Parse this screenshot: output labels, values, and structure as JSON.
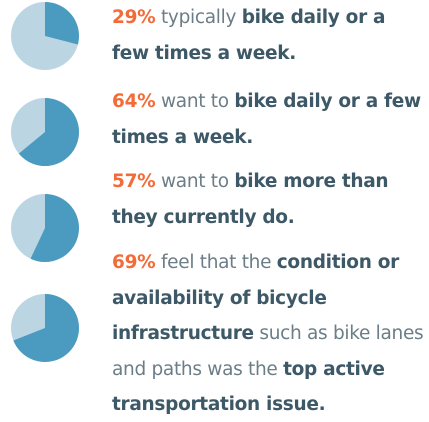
{
  "colors": {
    "filled": "#4a9bbf",
    "empty": "#bcd5e2",
    "highlight": "#f26b38",
    "bold": "#3d5866",
    "regular": "#6b7d87"
  },
  "items": [
    {
      "value": 29,
      "value_label": "29%",
      "segments": [
        {
          "text": " typically ",
          "bold": false
        },
        {
          "text": "bike daily or a few times a week.",
          "bold": true
        }
      ]
    },
    {
      "value": 64,
      "value_label": "64%",
      "segments": [
        {
          "text": " want to ",
          "bold": false
        },
        {
          "text": "bike daily or a few times a week.",
          "bold": true
        }
      ]
    },
    {
      "value": 57,
      "value_label": "57%",
      "segments": [
        {
          "text": " want to ",
          "bold": false
        },
        {
          "text": "bike more than they currently do.",
          "bold": true
        }
      ]
    },
    {
      "value": 69,
      "value_label": "69%",
      "segments": [
        {
          "text": " feel that the ",
          "bold": false
        },
        {
          "text": "condition or availability of bicycle infrastructure",
          "bold": true
        },
        {
          "text": " such as bike lanes and paths was the ",
          "bold": false
        },
        {
          "text": "top active transportation issue.",
          "bold": true
        }
      ]
    }
  ]
}
